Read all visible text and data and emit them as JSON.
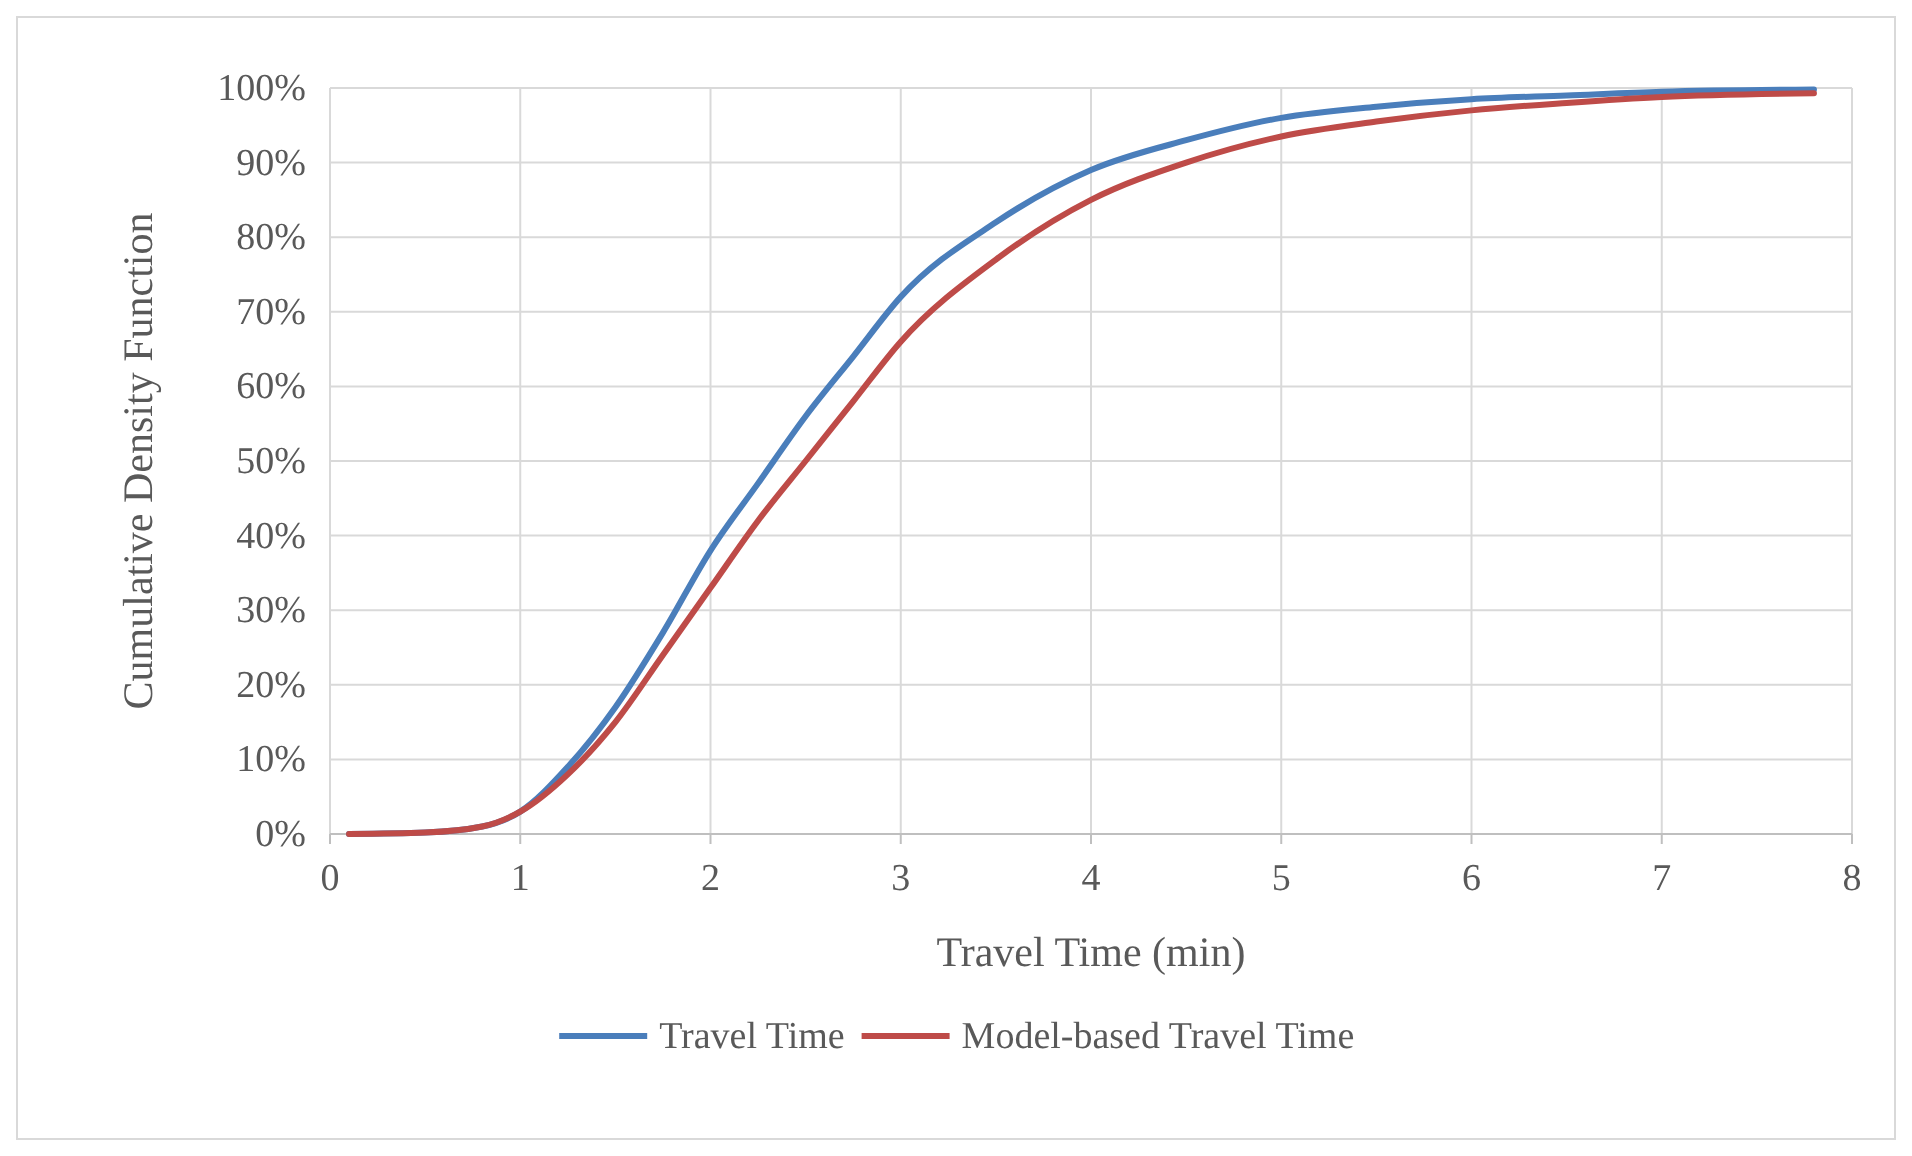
{
  "chart_data": {
    "type": "line",
    "xlabel": "Travel Time (min)",
    "ylabel": "Cumulative Density Function",
    "xlim": [
      0,
      8
    ],
    "xticks": [
      0,
      1,
      2,
      3,
      4,
      5,
      6,
      7,
      8
    ],
    "ylim": [
      0,
      100
    ],
    "yticks": [
      {
        "value": 0,
        "label": "0%"
      },
      {
        "value": 10,
        "label": "10%"
      },
      {
        "value": 20,
        "label": "20%"
      },
      {
        "value": 30,
        "label": "30%"
      },
      {
        "value": 40,
        "label": "40%"
      },
      {
        "value": 50,
        "label": "50%"
      },
      {
        "value": 60,
        "label": "60%"
      },
      {
        "value": 70,
        "label": "70%"
      },
      {
        "value": 80,
        "label": "80%"
      },
      {
        "value": 90,
        "label": "90%"
      },
      {
        "value": 100,
        "label": "100%"
      }
    ],
    "x": [
      0.1,
      0.5,
      0.8,
      1,
      1.25,
      1.5,
      1.75,
      2,
      2.25,
      2.5,
      2.75,
      3,
      3.5,
      4,
      4.5,
      5,
      5.5,
      6,
      6.5,
      7,
      7.8
    ],
    "series": [
      {
        "name": "Travel Time",
        "color": "#4a7ebb",
        "values": [
          0,
          0.2,
          1,
          3,
          9,
          17,
          27,
          38,
          47,
          56,
          64,
          72,
          82,
          89,
          93,
          96,
          97.5,
          98.5,
          99,
          99.5,
          99.8
        ]
      },
      {
        "name": "Model-based Travel Time",
        "color": "#be4b48",
        "values": [
          0,
          0.2,
          1,
          3,
          8,
          15,
          24,
          33,
          42,
          50,
          58,
          66,
          77,
          85,
          90,
          93.5,
          95.5,
          97,
          98,
          98.8,
          99.3
        ]
      }
    ],
    "grid": true,
    "legend": "bottom",
    "marker": "none",
    "line_style": "solid"
  }
}
